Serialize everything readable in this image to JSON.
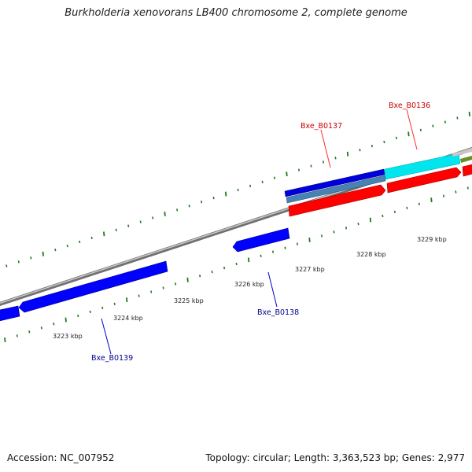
{
  "title": "Burkholderia xenovorans LB400 chromosome 2, complete genome",
  "footer": {
    "accession": "Accession: NC_007952",
    "summary": "Topology: circular; Length: 3,363,523 bp; Genes: 2,977"
  },
  "colors": {
    "tick": "#1f7a1f",
    "forward_cds": "#ff0000",
    "reverse_cds": "#0000ff",
    "backbone": "#909090",
    "label_forward": "#cc0000",
    "label_reverse": "#00008b"
  },
  "tick_labels": [
    {
      "text": "3223 kbp",
      "kbp": 3223
    },
    {
      "text": "3224 kbp",
      "kbp": 3224
    },
    {
      "text": "3225 kbp",
      "kbp": 3225
    },
    {
      "text": "3226 kbp",
      "kbp": 3226
    },
    {
      "text": "3227 kbp",
      "kbp": 3227
    },
    {
      "text": "3228 kbp",
      "kbp": 3228
    },
    {
      "text": "3229 kbp",
      "kbp": 3229
    }
  ],
  "genes": [
    {
      "name": "Bxe_B0136",
      "strand": "forward"
    },
    {
      "name": "Bxe_B0137",
      "strand": "reverse"
    },
    {
      "name": "Bxe_B0138",
      "strand": "reverse"
    },
    {
      "name": "Bxe_B0139",
      "strand": "reverse"
    }
  ]
}
